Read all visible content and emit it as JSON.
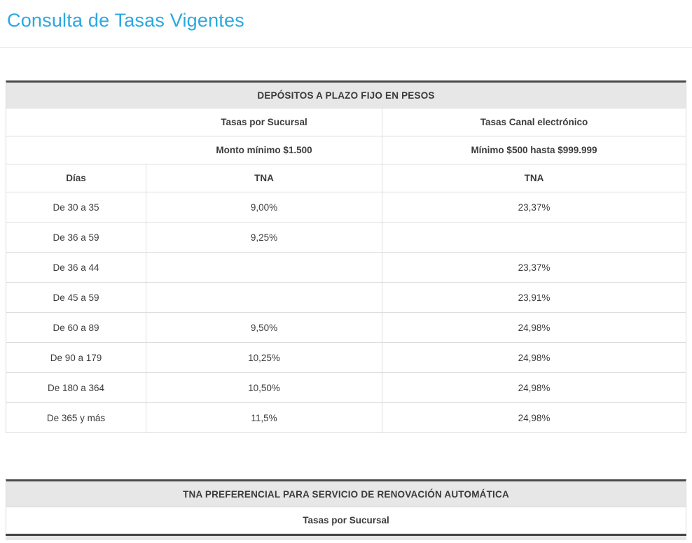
{
  "page": {
    "title": "Consulta de Tasas Vigentes"
  },
  "deposits_table": {
    "header": "DEPÓSITOS A PLAZO FIJO EN PESOS",
    "group_headers": {
      "sucursal": "Tasas por Sucursal",
      "canal": "Tasas Canal electrónico"
    },
    "subtitles": {
      "sucursal": "Monto mínimo $1.500",
      "canal": "Mínimo $500 hasta $999.999"
    },
    "columns": [
      "Días",
      "TNA",
      "TNA"
    ],
    "rows": [
      {
        "dias": "De 30 a 35",
        "sucursal": "9,00%",
        "canal": "23,37%"
      },
      {
        "dias": "De 36 a 59",
        "sucursal": "9,25%",
        "canal": ""
      },
      {
        "dias": "De 36 a 44",
        "sucursal": "",
        "canal": "23,37%"
      },
      {
        "dias": "De 45 a 59",
        "sucursal": "",
        "canal": "23,91%"
      },
      {
        "dias": "De 60 a 89",
        "sucursal": "9,50%",
        "canal": "24,98%"
      },
      {
        "dias": "De 90 a 179",
        "sucursal": "10,25%",
        "canal": "24,98%"
      },
      {
        "dias": "De 180 a 364",
        "sucursal": "10,50%",
        "canal": "24,98%"
      },
      {
        "dias": "De 365 y más",
        "sucursal": "11,5%",
        "canal": "24,98%"
      }
    ]
  },
  "preferential_table": {
    "header": "TNA PREFERENCIAL PARA SERVICIO DE RENOVACIÓN AUTOMÁTICA",
    "sub_header": "Tasas por Sucursal"
  },
  "colors": {
    "title": "#2ba8e0",
    "header_bg": "#e7e7e7",
    "header_top_border": "#4a4a4a",
    "text": "#3c3c3c",
    "divider": "#dddddd"
  }
}
